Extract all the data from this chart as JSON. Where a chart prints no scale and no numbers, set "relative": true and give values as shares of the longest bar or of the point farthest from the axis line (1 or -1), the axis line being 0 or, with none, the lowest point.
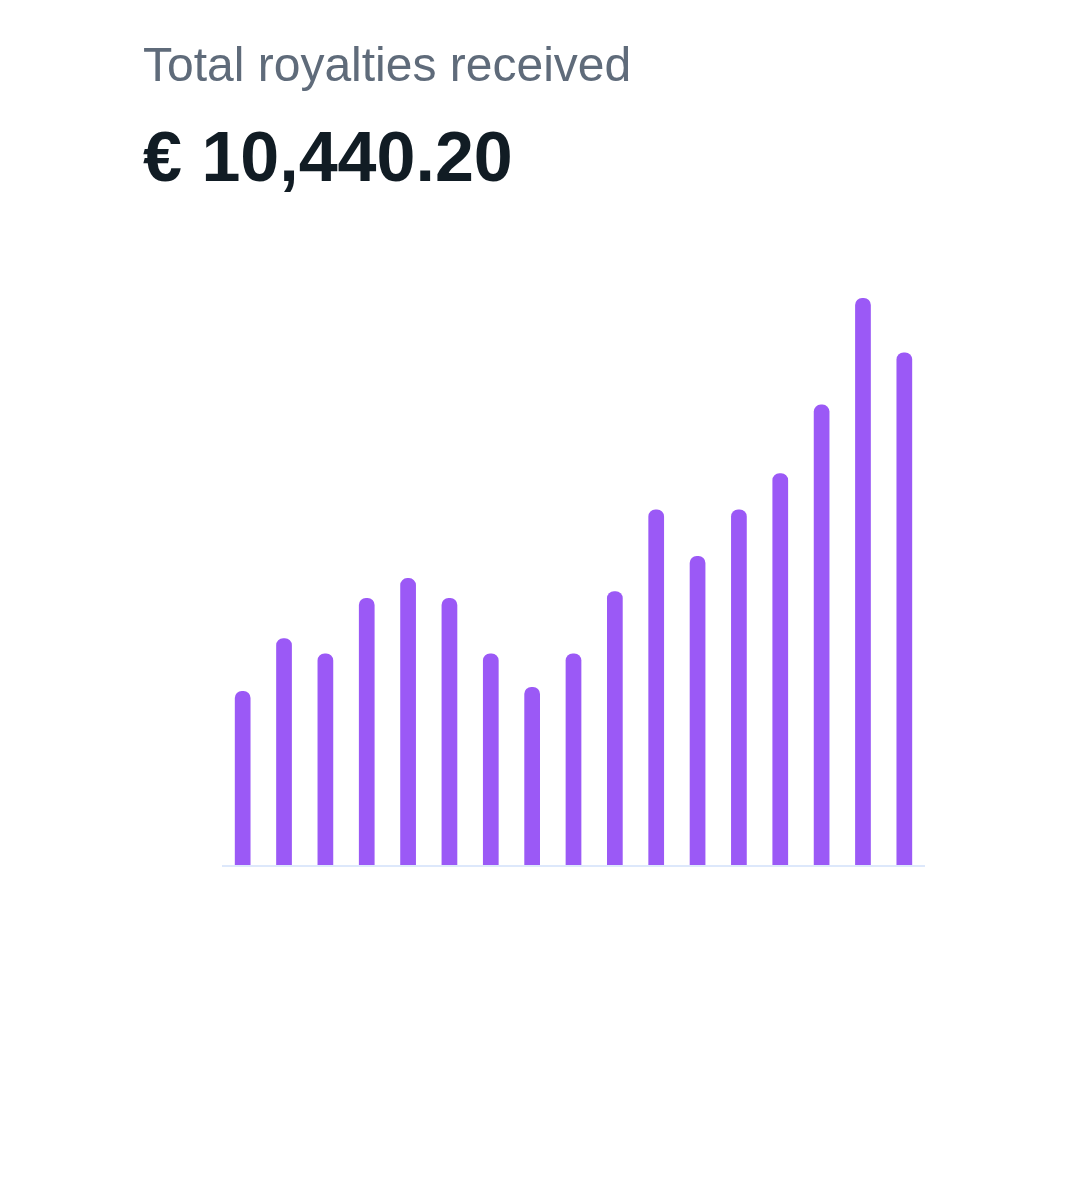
{
  "chart_data": {
    "type": "bar",
    "title": "Total royalties received",
    "subtitle": "€ 10,440.20",
    "relative": true,
    "categories": [
      null,
      null,
      null,
      null,
      null,
      null,
      null,
      null,
      null,
      null,
      null,
      null,
      null,
      null,
      null,
      null,
      null
    ],
    "values": [
      0.307,
      0.4,
      0.373,
      0.471,
      0.506,
      0.471,
      0.373,
      0.314,
      0.373,
      0.483,
      0.627,
      0.545,
      0.627,
      0.691,
      0.812,
      1,
      0.904
    ],
    "color": "#9b59f6"
  }
}
